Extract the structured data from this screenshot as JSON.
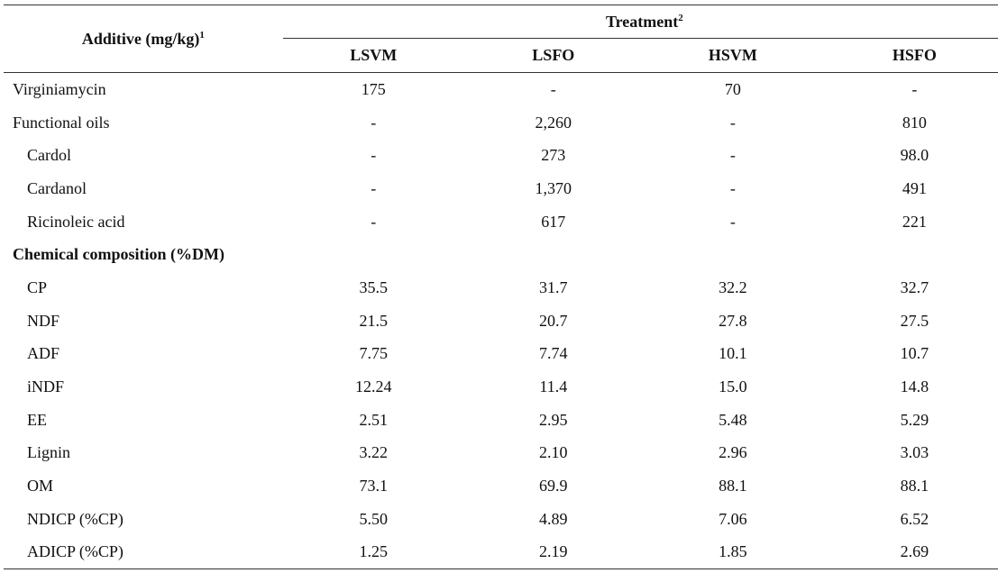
{
  "header": {
    "additive_label": "Additive (mg/kg)",
    "additive_sup": "1",
    "treatment_label": "Treatment",
    "treatment_sup": "2",
    "columns": [
      "LSVM",
      "LSFO",
      "HSVM",
      "HSFO"
    ]
  },
  "rows": [
    {
      "label": "Virginiamycin",
      "values": [
        "175",
        "-",
        "70",
        "-"
      ]
    },
    {
      "label": "Functional oils",
      "values": [
        "-",
        "2,260",
        "-",
        "810"
      ]
    },
    {
      "label": "Cardol",
      "values": [
        "-",
        "273",
        "-",
        "98.0"
      ]
    },
    {
      "label": "Cardanol",
      "values": [
        "-",
        "1,370",
        "-",
        "491"
      ]
    },
    {
      "label": "Ricinoleic acid",
      "values": [
        "-",
        "617",
        "-",
        "221"
      ]
    },
    {
      "label": "Chemical composition (%DM)",
      "values": [
        "",
        "",
        "",
        ""
      ]
    },
    {
      "label": "CP",
      "values": [
        "35.5",
        "31.7",
        "32.2",
        "32.7"
      ]
    },
    {
      "label": "NDF",
      "values": [
        "21.5",
        "20.7",
        "27.8",
        "27.5"
      ]
    },
    {
      "label": "ADF",
      "values": [
        "7.75",
        "7.74",
        "10.1",
        "10.7"
      ]
    },
    {
      "label": "iNDF",
      "values": [
        "12.24",
        "11.4",
        "15.0",
        "14.8"
      ]
    },
    {
      "label": "EE",
      "values": [
        "2.51",
        "2.95",
        "5.48",
        "5.29"
      ]
    },
    {
      "label": "Lignin",
      "values": [
        "3.22",
        "2.10",
        "2.96",
        "3.03"
      ]
    },
    {
      "label": "OM",
      "values": [
        "73.1",
        "69.9",
        "88.1",
        "88.1"
      ]
    },
    {
      "label": "NDICP (%CP)",
      "values": [
        "5.50",
        "4.89",
        "7.06",
        "6.52"
      ]
    },
    {
      "label": "ADICP (%CP)",
      "values": [
        "1.25",
        "2.19",
        "1.85",
        "2.69"
      ]
    }
  ]
}
